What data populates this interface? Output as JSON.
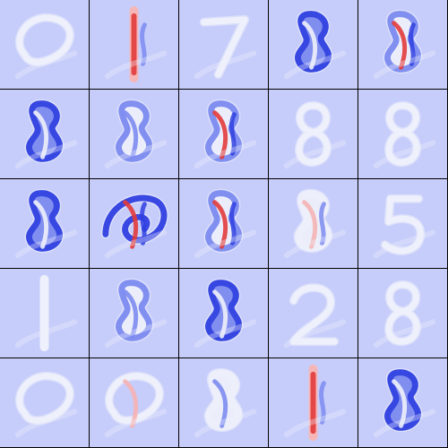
{
  "grid": {
    "rows": 5,
    "cols": 5
  },
  "palette": {
    "background": "#c6cdfa",
    "neutral_light": "#eef0fb",
    "positive_strong": "#e23b3b",
    "positive_soft": "#f5b3b3",
    "negative_strong": "#2f3fe0",
    "negative_soft": "#7d8bf0",
    "grid_line": "#000000"
  },
  "tiles": [
    {
      "row": 0,
      "col": 0,
      "glyph": "loop",
      "style": "faint"
    },
    {
      "row": 0,
      "col": 1,
      "glyph": "stroke",
      "style": "red-bar"
    },
    {
      "row": 0,
      "col": 2,
      "glyph": "seven",
      "style": "faint"
    },
    {
      "row": 0,
      "col": 3,
      "glyph": "figure",
      "style": "blue"
    },
    {
      "row": 0,
      "col": 4,
      "glyph": "figure",
      "style": "mixed"
    },
    {
      "row": 1,
      "col": 0,
      "glyph": "figure",
      "style": "blue"
    },
    {
      "row": 1,
      "col": 1,
      "glyph": "figure",
      "style": "blue-soft"
    },
    {
      "row": 1,
      "col": 2,
      "glyph": "figure",
      "style": "mixed"
    },
    {
      "row": 1,
      "col": 3,
      "glyph": "eight",
      "style": "faint"
    },
    {
      "row": 1,
      "col": 4,
      "glyph": "eight",
      "style": "faint"
    },
    {
      "row": 2,
      "col": 0,
      "glyph": "figure",
      "style": "blue"
    },
    {
      "row": 2,
      "col": 1,
      "glyph": "swirl",
      "style": "mixed-strong"
    },
    {
      "row": 2,
      "col": 2,
      "glyph": "figure",
      "style": "mixed"
    },
    {
      "row": 2,
      "col": 3,
      "glyph": "figure",
      "style": "mixed-soft"
    },
    {
      "row": 2,
      "col": 4,
      "glyph": "five",
      "style": "faint"
    },
    {
      "row": 3,
      "col": 0,
      "glyph": "stroke",
      "style": "faint"
    },
    {
      "row": 3,
      "col": 1,
      "glyph": "figure",
      "style": "blue-soft"
    },
    {
      "row": 3,
      "col": 2,
      "glyph": "figure",
      "style": "blue"
    },
    {
      "row": 3,
      "col": 3,
      "glyph": "two",
      "style": "faint"
    },
    {
      "row": 3,
      "col": 4,
      "glyph": "eight",
      "style": "faint"
    },
    {
      "row": 4,
      "col": 0,
      "glyph": "loop",
      "style": "faint"
    },
    {
      "row": 4,
      "col": 1,
      "glyph": "loop",
      "style": "faint-red"
    },
    {
      "row": 4,
      "col": 2,
      "glyph": "figure",
      "style": "faint-blue"
    },
    {
      "row": 4,
      "col": 3,
      "glyph": "stroke",
      "style": "red-bar"
    },
    {
      "row": 4,
      "col": 4,
      "glyph": "figure",
      "style": "blue"
    }
  ]
}
